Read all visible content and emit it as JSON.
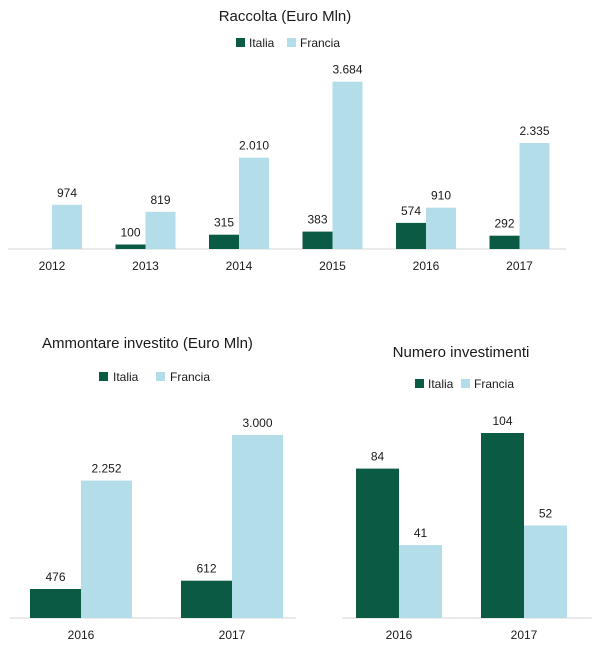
{
  "colors": {
    "italia": "#0b5a44",
    "francia": "#b3dde8"
  },
  "chart_data": [
    {
      "type": "bar",
      "title": "Raccolta (Euro Mln)",
      "categories": [
        "2012",
        "2013",
        "2014",
        "2015",
        "2016",
        "2017"
      ],
      "series": [
        {
          "name": "Italia",
          "values": [
            null,
            100,
            315,
            383,
            574,
            292
          ],
          "labels": [
            "",
            "100",
            "315",
            "383",
            "574",
            "292"
          ]
        },
        {
          "name": "Francia",
          "values": [
            974,
            819,
            2010,
            3684,
            910,
            2335
          ],
          "labels": [
            "974",
            "819",
            "2.010",
            "3.684",
            "910",
            "2.335"
          ]
        }
      ],
      "ylim": [
        0,
        3700
      ],
      "legend": "top-center",
      "grid": false
    },
    {
      "type": "bar",
      "title": "Ammontare investito (Euro Mln)",
      "categories": [
        "2016",
        "2017"
      ],
      "series": [
        {
          "name": "Italia",
          "values": [
            476,
            612
          ],
          "labels": [
            "476",
            "612"
          ]
        },
        {
          "name": "Francia",
          "values": [
            2252,
            3000
          ],
          "labels": [
            "2.252",
            "3.000"
          ]
        }
      ],
      "ylim": [
        0,
        3000
      ],
      "legend": "top-left",
      "grid": false
    },
    {
      "type": "bar",
      "title": "Numero investimenti",
      "categories": [
        "2016",
        "2017"
      ],
      "series": [
        {
          "name": "Italia",
          "values": [
            84,
            104
          ],
          "labels": [
            "84",
            "104"
          ]
        },
        {
          "name": "Francia",
          "values": [
            41,
            52
          ],
          "labels": [
            "41",
            "52"
          ]
        }
      ],
      "ylim": [
        0,
        104
      ],
      "legend": "top-center",
      "grid": false
    }
  ]
}
